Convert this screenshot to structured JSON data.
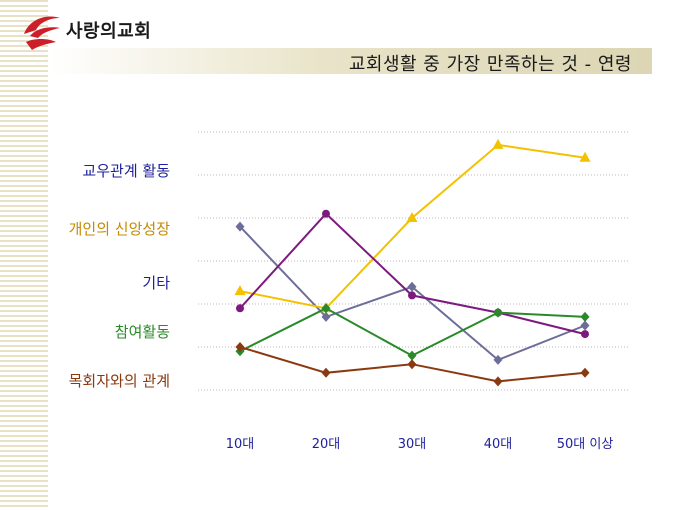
{
  "brand": {
    "name": "사랑의교회",
    "color": "#cc1f2a"
  },
  "chart_data": {
    "type": "line",
    "title": "교회생활 중 가장 만족하는 것 - 연령",
    "categories": [
      "10대",
      "20대",
      "30대",
      "40대",
      "50대 이상"
    ],
    "y_categories": [
      {
        "label": "교우관계 활동",
        "color": "#1f1f9c"
      },
      {
        "label": "개인의 신앙성장",
        "color": "#c58a00"
      },
      {
        "label": "기타",
        "color": "#1f1f9c"
      },
      {
        "label": "참여활동",
        "color": "#2a8a2a"
      },
      {
        "label": "목회자와의 관계",
        "color": "#8a3a10"
      }
    ],
    "ylim": [
      0,
      6
    ],
    "grid": true,
    "series": [
      {
        "name": "교우관계 활동",
        "color": "#6d6d9a",
        "marker": "diamond",
        "values": [
          3.8,
          1.7,
          2.4,
          0.7,
          1.5
        ]
      },
      {
        "name": "개인의 신앙성장",
        "color": "#f2c200",
        "marker": "triangle",
        "values": [
          2.3,
          1.9,
          4.0,
          5.7,
          5.4
        ]
      },
      {
        "name": "기타",
        "color": "#7d1a7d",
        "marker": "circle",
        "values": [
          1.9,
          4.1,
          2.2,
          1.8,
          1.3
        ]
      },
      {
        "name": "참여활동",
        "color": "#2a8a2a",
        "marker": "diamond",
        "values": [
          0.9,
          1.9,
          0.8,
          1.8,
          1.7
        ]
      },
      {
        "name": "목회자와의 관계",
        "color": "#8a3a10",
        "marker": "diamond",
        "values": [
          1.0,
          0.4,
          0.6,
          0.2,
          0.4
        ]
      }
    ]
  }
}
